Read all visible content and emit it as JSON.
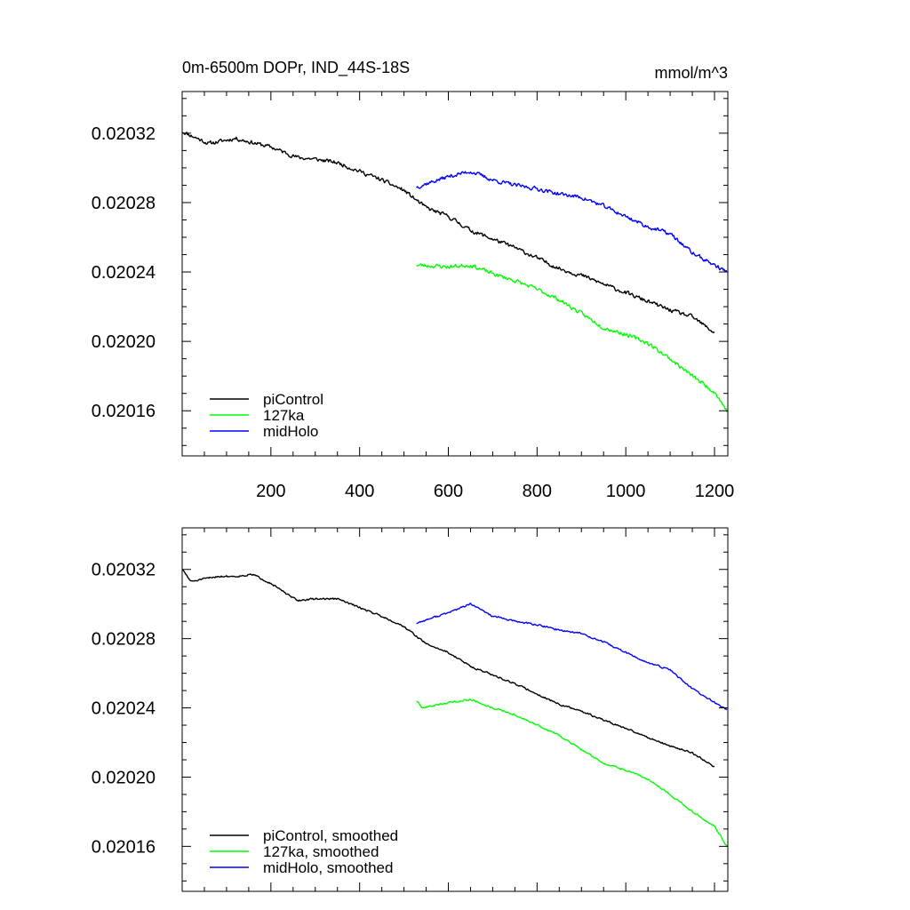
{
  "chart_data": [
    {
      "type": "line",
      "title": "0m-6500m DOPr, IND_44S-18S",
      "units": "mmol/m^3",
      "xlabel": "",
      "ylabel": "",
      "xlim": [
        0,
        1230
      ],
      "ylim": [
        0.020134,
        0.020344
      ],
      "xticks": [
        200,
        400,
        600,
        800,
        1000,
        1200
      ],
      "xtick_labels": [
        "200",
        "400",
        "600",
        "800",
        "1000",
        "1200"
      ],
      "yticks": [
        0.02016,
        0.0202,
        0.02024,
        0.02028,
        0.02032
      ],
      "ytick_labels": [
        "0.02016",
        "0.02020",
        "0.02024",
        "0.02028",
        "0.02032"
      ],
      "legend_position": "bottom-left",
      "series": [
        {
          "name": "piControl",
          "color": "#000000",
          "x_start": 0,
          "x_end": 1200,
          "anchors": [
            [
              0,
              0.020321
            ],
            [
              60,
              0.020314
            ],
            [
              120,
              0.020317
            ],
            [
              200,
              0.020312
            ],
            [
              260,
              0.020306
            ],
            [
              300,
              0.020305
            ],
            [
              350,
              0.020303
            ],
            [
              400,
              0.020298
            ],
            [
              450,
              0.020293
            ],
            [
              500,
              0.020287
            ],
            [
              550,
              0.020277
            ],
            [
              600,
              0.020272
            ],
            [
              650,
              0.020264
            ],
            [
              700,
              0.020259
            ],
            [
              750,
              0.020254
            ],
            [
              800,
              0.020248
            ],
            [
              850,
              0.020242
            ],
            [
              900,
              0.020238
            ],
            [
              950,
              0.020233
            ],
            [
              1000,
              0.020228
            ],
            [
              1050,
              0.020223
            ],
            [
              1100,
              0.020218
            ],
            [
              1150,
              0.020214
            ],
            [
              1200,
              0.020205
            ]
          ],
          "noise_amplitude": 1.8e-06,
          "seed": 11
        },
        {
          "name": "127ka",
          "color": "#00ff00",
          "x_start": 528,
          "x_end": 1228,
          "anchors": [
            [
              528,
              0.020244
            ],
            [
              600,
              0.020243
            ],
            [
              650,
              0.020244
            ],
            [
              700,
              0.020239
            ],
            [
              750,
              0.020235
            ],
            [
              800,
              0.02023
            ],
            [
              850,
              0.020224
            ],
            [
              900,
              0.020216
            ],
            [
              950,
              0.020208
            ],
            [
              1000,
              0.020204
            ],
            [
              1050,
              0.020199
            ],
            [
              1100,
              0.02019
            ],
            [
              1150,
              0.02018
            ],
            [
              1200,
              0.020171
            ],
            [
              1228,
              0.02016
            ]
          ],
          "noise_amplitude": 1.8e-06,
          "seed": 23
        },
        {
          "name": "midHolo",
          "color": "#0000ff",
          "x_start": 528,
          "x_end": 1228,
          "anchors": [
            [
              528,
              0.020289
            ],
            [
              600,
              0.020295
            ],
            [
              650,
              0.020298
            ],
            [
              700,
              0.020293
            ],
            [
              750,
              0.02029
            ],
            [
              800,
              0.020288
            ],
            [
              850,
              0.020285
            ],
            [
              900,
              0.020283
            ],
            [
              950,
              0.020278
            ],
            [
              1000,
              0.020272
            ],
            [
              1050,
              0.020266
            ],
            [
              1100,
              0.020262
            ],
            [
              1150,
              0.020251
            ],
            [
              1200,
              0.020244
            ],
            [
              1228,
              0.02024
            ]
          ],
          "noise_amplitude": 1.8e-06,
          "seed": 37
        }
      ]
    },
    {
      "type": "line",
      "title": "",
      "xlabel": "",
      "ylabel": "",
      "xlim": [
        0,
        1230
      ],
      "ylim": [
        0.020134,
        0.020344
      ],
      "xticks": [
        200,
        400,
        600,
        800,
        1000,
        1200
      ],
      "xtick_labels": [],
      "yticks": [
        0.02016,
        0.0202,
        0.02024,
        0.02028,
        0.02032
      ],
      "ytick_labels": [
        "0.02016",
        "0.02020",
        "0.02024",
        "0.02028",
        "0.02032"
      ],
      "legend_position": "bottom-left",
      "series": [
        {
          "name": "piControl, smoothed",
          "color": "#000000",
          "x_start": 0,
          "x_end": 1200,
          "anchors": [
            [
              0,
              0.02032
            ],
            [
              20,
              0.020313
            ],
            [
              40,
              0.020314
            ],
            [
              80,
              0.020316
            ],
            [
              120,
              0.020316
            ],
            [
              160,
              0.020317
            ],
            [
              200,
              0.020312
            ],
            [
              240,
              0.020305
            ],
            [
              260,
              0.020302
            ],
            [
              300,
              0.020303
            ],
            [
              350,
              0.020303
            ],
            [
              400,
              0.020298
            ],
            [
              450,
              0.020293
            ],
            [
              500,
              0.020287
            ],
            [
              550,
              0.020277
            ],
            [
              600,
              0.020272
            ],
            [
              650,
              0.020264
            ],
            [
              700,
              0.020259
            ],
            [
              750,
              0.020254
            ],
            [
              800,
              0.020248
            ],
            [
              850,
              0.020242
            ],
            [
              900,
              0.020238
            ],
            [
              950,
              0.020233
            ],
            [
              1000,
              0.020228
            ],
            [
              1050,
              0.020223
            ],
            [
              1100,
              0.020218
            ],
            [
              1150,
              0.020214
            ],
            [
              1200,
              0.020206
            ]
          ],
          "noise_amplitude": 8e-07,
          "seed": 51
        },
        {
          "name": "127ka, smoothed",
          "color": "#00ff00",
          "x_start": 528,
          "x_end": 1228,
          "anchors": [
            [
              528,
              0.020244
            ],
            [
              540,
              0.02024
            ],
            [
              600,
              0.020243
            ],
            [
              650,
              0.020245
            ],
            [
              700,
              0.02024
            ],
            [
              750,
              0.020236
            ],
            [
              800,
              0.02023
            ],
            [
              850,
              0.020224
            ],
            [
              900,
              0.020216
            ],
            [
              950,
              0.020208
            ],
            [
              1000,
              0.020204
            ],
            [
              1050,
              0.020199
            ],
            [
              1100,
              0.02019
            ],
            [
              1150,
              0.02018
            ],
            [
              1200,
              0.020172
            ],
            [
              1228,
              0.02016
            ]
          ],
          "noise_amplitude": 8e-07,
          "seed": 63
        },
        {
          "name": "midHolo, smoothed",
          "color": "#0000ff",
          "x_start": 528,
          "x_end": 1228,
          "anchors": [
            [
              528,
              0.020289
            ],
            [
              600,
              0.020295
            ],
            [
              650,
              0.0203
            ],
            [
              700,
              0.020293
            ],
            [
              750,
              0.02029
            ],
            [
              800,
              0.020288
            ],
            [
              850,
              0.020285
            ],
            [
              900,
              0.020283
            ],
            [
              950,
              0.020278
            ],
            [
              1000,
              0.020272
            ],
            [
              1050,
              0.020266
            ],
            [
              1100,
              0.020262
            ],
            [
              1150,
              0.020251
            ],
            [
              1200,
              0.020243
            ],
            [
              1228,
              0.020239
            ]
          ],
          "noise_amplitude": 8e-07,
          "seed": 77
        }
      ]
    }
  ]
}
